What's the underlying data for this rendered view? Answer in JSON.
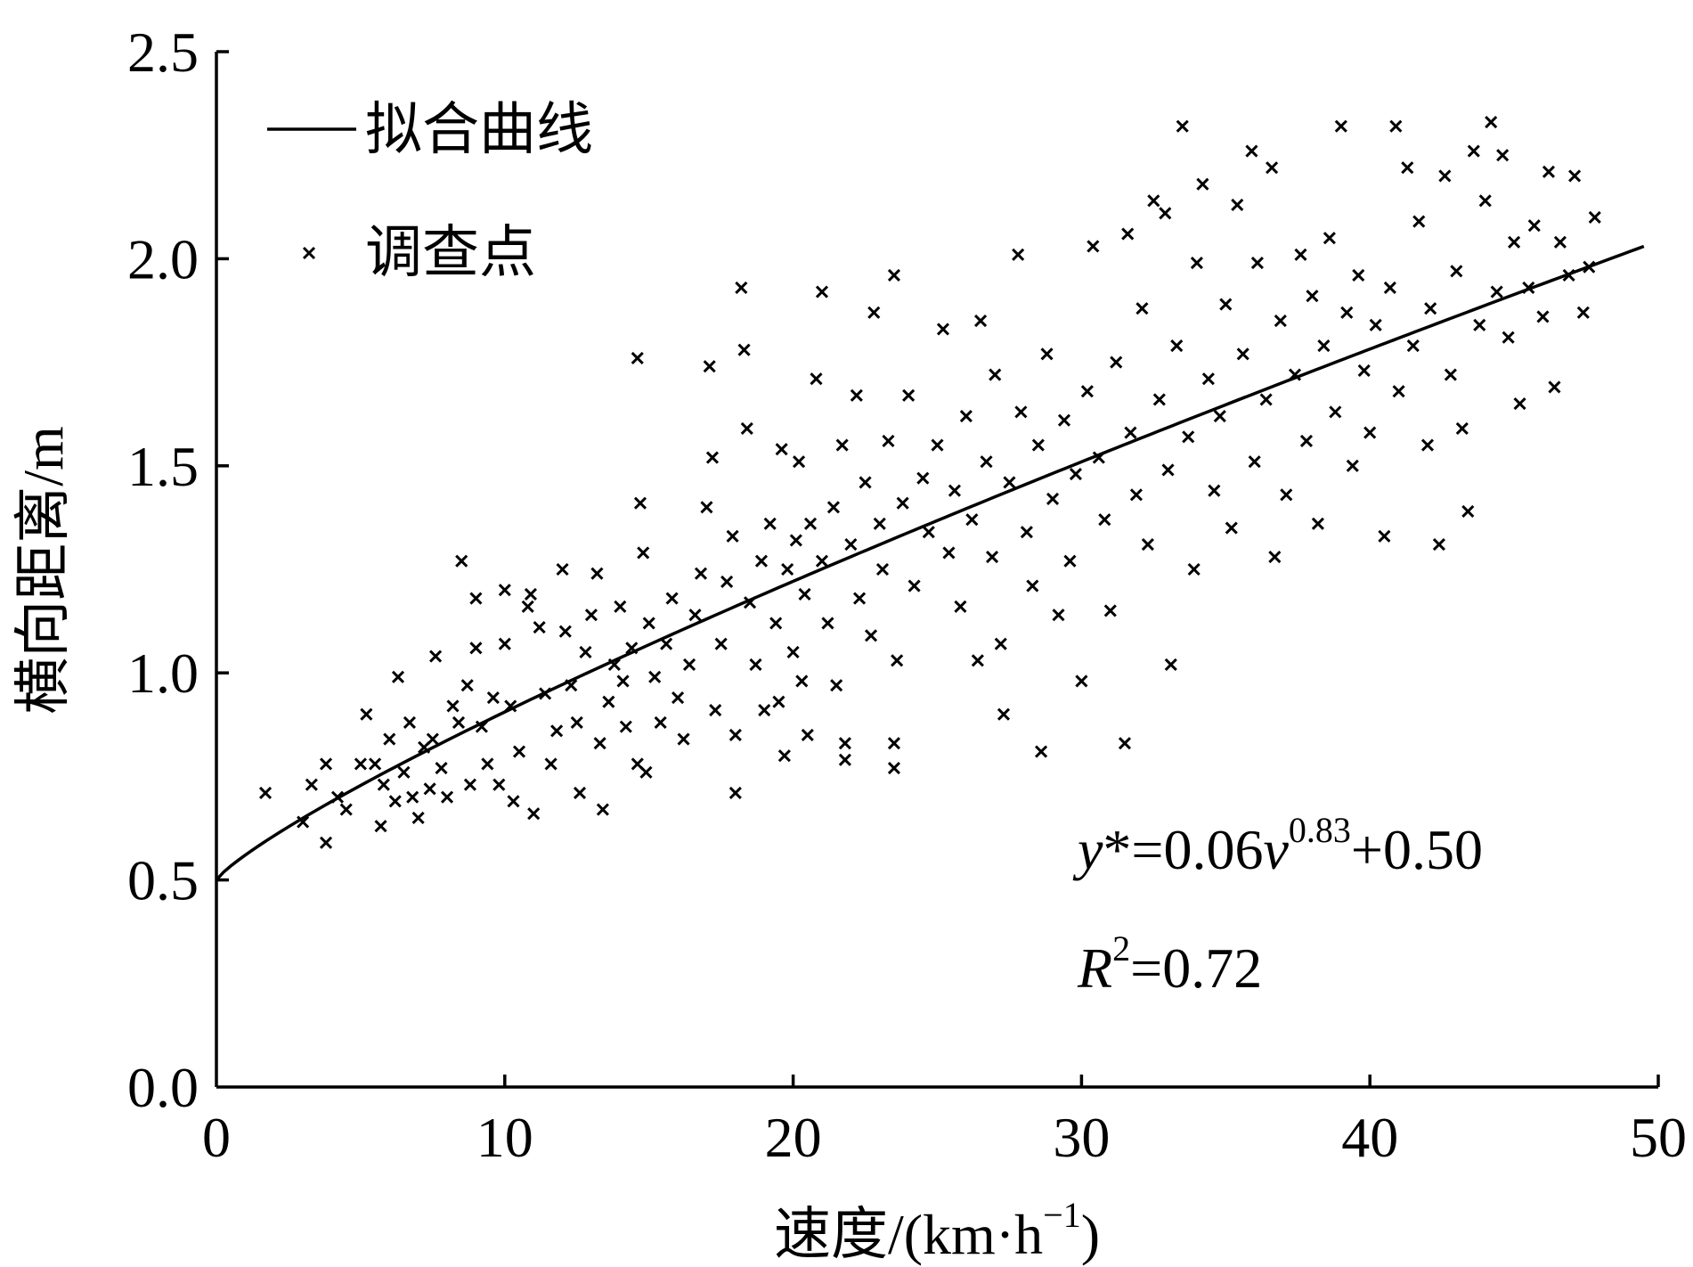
{
  "chart_data": {
    "type": "scatter",
    "xlim": [
      0,
      50
    ],
    "ylim": [
      0.0,
      2.5
    ],
    "x_ticks": [
      "0",
      "10",
      "20",
      "30",
      "40",
      "50"
    ],
    "y_ticks": [
      "0.0",
      "0.5",
      "1.0",
      "1.5",
      "2.0",
      "2.5"
    ],
    "xlabel": "速度/(km·h",
    "xlabel_sup": "−1",
    "xlabel_tail": ")",
    "ylabel": "横向距离/m",
    "grid": false,
    "legend_position": "top-left",
    "legend": {
      "fit_label": "拟合曲线",
      "points_label": "调查点"
    },
    "fit": {
      "a": 0.06,
      "b": 0.83,
      "c": 0.5,
      "x_range": [
        0,
        49.5
      ]
    },
    "equation": {
      "y_var": "y",
      "star_eq": "*=0.06",
      "v_var": "v",
      "exponent": "0.83",
      "tail": "+0.50",
      "r_var": "R",
      "r_exp": "2",
      "r_tail": "=0.72"
    },
    "series": [
      {
        "points": [
          [
            1.7,
            0.71
          ],
          [
            3.0,
            0.64
          ],
          [
            3.3,
            0.73
          ],
          [
            3.8,
            0.78
          ],
          [
            3.8,
            0.59
          ],
          [
            4.2,
            0.7
          ],
          [
            4.5,
            0.67
          ],
          [
            5.0,
            0.78
          ],
          [
            5.2,
            0.9
          ],
          [
            5.5,
            0.78
          ],
          [
            5.7,
            0.63
          ],
          [
            5.8,
            0.73
          ],
          [
            6.0,
            0.84
          ],
          [
            6.2,
            0.69
          ],
          [
            6.3,
            0.99
          ],
          [
            6.5,
            0.76
          ],
          [
            6.7,
            0.88
          ],
          [
            6.8,
            0.7
          ],
          [
            7.0,
            0.65
          ],
          [
            7.2,
            0.82
          ],
          [
            7.4,
            0.72
          ],
          [
            7.5,
            0.84
          ],
          [
            7.6,
            1.04
          ],
          [
            7.8,
            0.77
          ],
          [
            8.0,
            0.7
          ],
          [
            8.2,
            0.92
          ],
          [
            8.4,
            0.88
          ],
          [
            8.5,
            1.27
          ],
          [
            8.7,
            0.97
          ],
          [
            8.8,
            0.73
          ],
          [
            9.0,
            1.18
          ],
          [
            9.0,
            1.06
          ],
          [
            9.2,
            0.87
          ],
          [
            9.4,
            0.78
          ],
          [
            9.6,
            0.94
          ],
          [
            9.8,
            0.73
          ],
          [
            10.0,
            1.2
          ],
          [
            10.0,
            1.07
          ],
          [
            10.2,
            0.92
          ],
          [
            10.3,
            0.69
          ],
          [
            10.5,
            0.81
          ],
          [
            10.8,
            1.16
          ],
          [
            10.9,
            1.19
          ],
          [
            11.0,
            0.66
          ],
          [
            11.2,
            1.11
          ],
          [
            11.4,
            0.95
          ],
          [
            11.6,
            0.78
          ],
          [
            11.8,
            0.86
          ],
          [
            12.0,
            1.25
          ],
          [
            12.1,
            1.1
          ],
          [
            12.3,
            0.97
          ],
          [
            12.5,
            0.88
          ],
          [
            12.6,
            0.71
          ],
          [
            12.8,
            1.05
          ],
          [
            13.0,
            1.14
          ],
          [
            13.2,
            1.24
          ],
          [
            13.3,
            0.83
          ],
          [
            13.4,
            0.67
          ],
          [
            13.6,
            0.93
          ],
          [
            13.8,
            1.02
          ],
          [
            14.0,
            1.16
          ],
          [
            14.1,
            0.98
          ],
          [
            14.2,
            0.87
          ],
          [
            14.4,
            1.06
          ],
          [
            14.6,
            0.78
          ],
          [
            14.6,
            1.76
          ],
          [
            14.7,
            1.41
          ],
          [
            14.8,
            1.29
          ],
          [
            14.9,
            0.76
          ],
          [
            15.0,
            1.12
          ],
          [
            15.2,
            0.99
          ],
          [
            15.4,
            0.88
          ],
          [
            15.6,
            1.07
          ],
          [
            15.8,
            1.18
          ],
          [
            16.0,
            0.94
          ],
          [
            16.2,
            0.84
          ],
          [
            16.4,
            1.02
          ],
          [
            16.6,
            1.14
          ],
          [
            16.8,
            1.24
          ],
          [
            17.0,
            1.4
          ],
          [
            17.1,
            1.74
          ],
          [
            17.2,
            1.52
          ],
          [
            17.3,
            0.91
          ],
          [
            17.5,
            1.07
          ],
          [
            17.7,
            1.22
          ],
          [
            17.9,
            1.33
          ],
          [
            18.0,
            0.71
          ],
          [
            18.0,
            0.85
          ],
          [
            18.2,
            1.93
          ],
          [
            18.3,
            1.78
          ],
          [
            18.4,
            1.59
          ],
          [
            18.5,
            1.17
          ],
          [
            18.7,
            1.02
          ],
          [
            18.9,
            1.27
          ],
          [
            19.0,
            0.91
          ],
          [
            19.2,
            1.36
          ],
          [
            19.4,
            1.12
          ],
          [
            19.5,
            0.93
          ],
          [
            19.6,
            1.54
          ],
          [
            19.7,
            0.8
          ],
          [
            19.8,
            1.25
          ],
          [
            20.0,
            1.05
          ],
          [
            20.1,
            1.32
          ],
          [
            20.2,
            1.51
          ],
          [
            20.3,
            0.98
          ],
          [
            20.4,
            1.19
          ],
          [
            20.5,
            0.85
          ],
          [
            20.6,
            1.36
          ],
          [
            20.8,
            1.71
          ],
          [
            21.0,
            1.92
          ],
          [
            21.0,
            1.27
          ],
          [
            21.2,
            1.12
          ],
          [
            21.4,
            1.4
          ],
          [
            21.5,
            0.97
          ],
          [
            21.7,
            1.55
          ],
          [
            21.8,
            0.83
          ],
          [
            21.8,
            0.79
          ],
          [
            22.0,
            1.31
          ],
          [
            22.2,
            1.67
          ],
          [
            22.3,
            1.18
          ],
          [
            22.5,
            1.46
          ],
          [
            22.7,
            1.09
          ],
          [
            22.8,
            1.87
          ],
          [
            23.0,
            1.36
          ],
          [
            23.1,
            1.25
          ],
          [
            23.3,
            1.56
          ],
          [
            23.5,
            0.83
          ],
          [
            23.5,
            0.77
          ],
          [
            23.5,
            1.96
          ],
          [
            23.6,
            1.03
          ],
          [
            23.8,
            1.41
          ],
          [
            24.0,
            1.67
          ],
          [
            24.2,
            1.21
          ],
          [
            24.5,
            1.47
          ],
          [
            24.7,
            1.34
          ],
          [
            25.0,
            1.55
          ],
          [
            25.2,
            1.83
          ],
          [
            25.4,
            1.29
          ],
          [
            25.6,
            1.44
          ],
          [
            25.8,
            1.16
          ],
          [
            26.0,
            1.62
          ],
          [
            26.2,
            1.37
          ],
          [
            26.4,
            1.03
          ],
          [
            26.5,
            1.85
          ],
          [
            26.7,
            1.51
          ],
          [
            26.9,
            1.28
          ],
          [
            27.0,
            1.72
          ],
          [
            27.2,
            1.07
          ],
          [
            27.3,
            0.9
          ],
          [
            27.5,
            1.46
          ],
          [
            27.8,
            2.01
          ],
          [
            27.9,
            1.63
          ],
          [
            28.1,
            1.34
          ],
          [
            28.3,
            1.21
          ],
          [
            28.5,
            1.55
          ],
          [
            28.6,
            0.81
          ],
          [
            28.8,
            1.77
          ],
          [
            29.0,
            1.42
          ],
          [
            29.2,
            1.14
          ],
          [
            29.4,
            1.61
          ],
          [
            29.6,
            1.27
          ],
          [
            29.8,
            1.48
          ],
          [
            30.0,
            0.98
          ],
          [
            30.2,
            1.68
          ],
          [
            30.4,
            2.03
          ],
          [
            30.6,
            1.52
          ],
          [
            30.8,
            1.37
          ],
          [
            31.0,
            1.15
          ],
          [
            31.2,
            1.75
          ],
          [
            31.5,
            0.83
          ],
          [
            31.6,
            2.06
          ],
          [
            31.7,
            1.58
          ],
          [
            31.9,
            1.43
          ],
          [
            32.1,
            1.88
          ],
          [
            32.3,
            1.31
          ],
          [
            32.5,
            2.14
          ],
          [
            32.7,
            1.66
          ],
          [
            32.9,
            2.11
          ],
          [
            33.0,
            1.49
          ],
          [
            33.1,
            1.02
          ],
          [
            33.3,
            1.79
          ],
          [
            33.5,
            2.32
          ],
          [
            33.7,
            1.57
          ],
          [
            33.9,
            1.25
          ],
          [
            34.0,
            1.99
          ],
          [
            34.2,
            2.18
          ],
          [
            34.4,
            1.71
          ],
          [
            34.6,
            1.44
          ],
          [
            34.8,
            1.62
          ],
          [
            35.0,
            1.89
          ],
          [
            35.2,
            1.35
          ],
          [
            35.4,
            2.13
          ],
          [
            35.6,
            1.77
          ],
          [
            35.9,
            2.26
          ],
          [
            36.0,
            1.51
          ],
          [
            36.1,
            1.99
          ],
          [
            36.4,
            1.66
          ],
          [
            36.6,
            2.22
          ],
          [
            36.7,
            1.28
          ],
          [
            36.9,
            1.85
          ],
          [
            37.1,
            1.43
          ],
          [
            37.4,
            1.72
          ],
          [
            37.6,
            2.01
          ],
          [
            37.8,
            1.56
          ],
          [
            38.0,
            1.91
          ],
          [
            38.2,
            1.36
          ],
          [
            38.4,
            1.79
          ],
          [
            38.6,
            2.05
          ],
          [
            38.8,
            1.63
          ],
          [
            39.0,
            2.32
          ],
          [
            39.2,
            1.87
          ],
          [
            39.4,
            1.5
          ],
          [
            39.6,
            1.96
          ],
          [
            39.8,
            1.73
          ],
          [
            40.0,
            1.58
          ],
          [
            40.2,
            1.84
          ],
          [
            40.5,
            1.33
          ],
          [
            40.7,
            1.93
          ],
          [
            40.9,
            2.32
          ],
          [
            41.0,
            1.68
          ],
          [
            41.3,
            2.22
          ],
          [
            41.5,
            1.79
          ],
          [
            41.7,
            2.09
          ],
          [
            42.0,
            1.55
          ],
          [
            42.1,
            1.88
          ],
          [
            42.4,
            1.31
          ],
          [
            42.6,
            2.2
          ],
          [
            42.8,
            1.72
          ],
          [
            43.0,
            1.97
          ],
          [
            43.2,
            1.59
          ],
          [
            43.4,
            1.39
          ],
          [
            43.6,
            2.26
          ],
          [
            43.8,
            1.84
          ],
          [
            44.0,
            2.14
          ],
          [
            44.2,
            2.33
          ],
          [
            44.4,
            1.92
          ],
          [
            44.6,
            2.25
          ],
          [
            44.8,
            1.81
          ],
          [
            45.0,
            2.04
          ],
          [
            45.2,
            1.65
          ],
          [
            45.5,
            1.93
          ],
          [
            45.7,
            2.08
          ],
          [
            46.0,
            1.86
          ],
          [
            46.2,
            2.21
          ],
          [
            46.4,
            1.69
          ],
          [
            46.6,
            2.04
          ],
          [
            46.9,
            1.96
          ],
          [
            47.1,
            2.2
          ],
          [
            47.4,
            1.87
          ],
          [
            47.6,
            1.98
          ],
          [
            47.8,
            2.1
          ]
        ]
      }
    ]
  }
}
